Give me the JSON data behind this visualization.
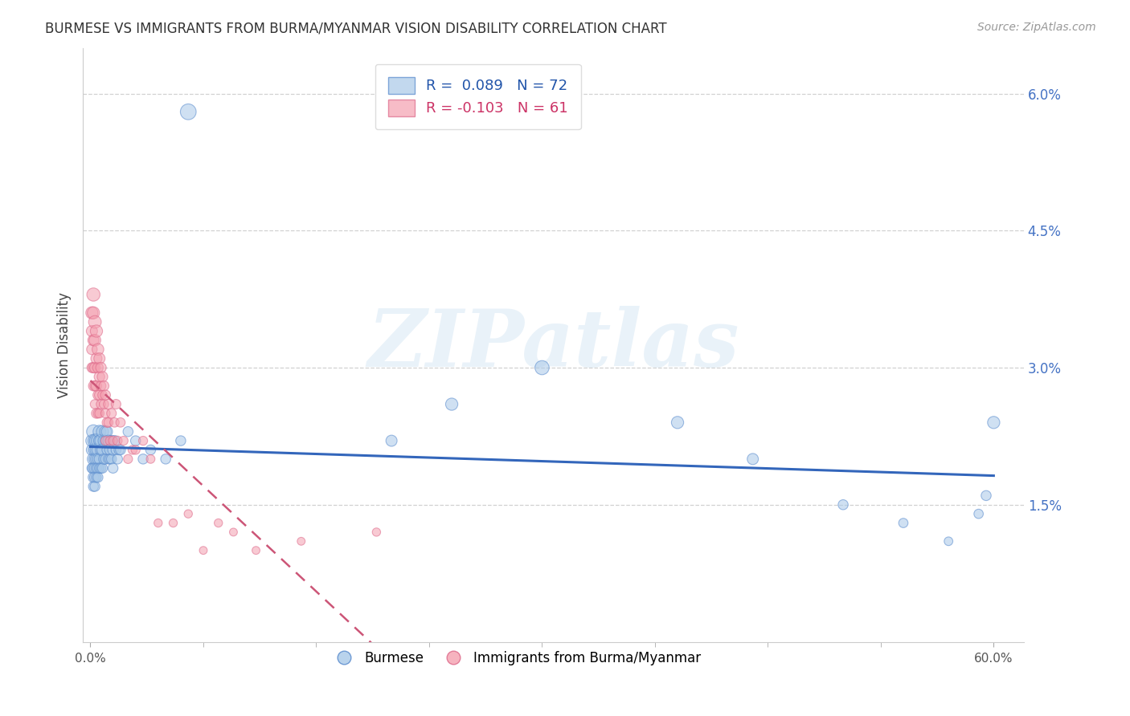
{
  "title": "BURMESE VS IMMIGRANTS FROM BURMA/MYANMAR VISION DISABILITY CORRELATION CHART",
  "source": "Source: ZipAtlas.com",
  "ylabel": "Vision Disability",
  "watermark": "ZIPatlas",
  "xlim": [
    -0.005,
    0.62
  ],
  "ylim": [
    0.0,
    0.065
  ],
  "xticks": [
    0.0,
    0.6
  ],
  "xticklabels": [
    "0.0%",
    "60.0%"
  ],
  "yticks_right": [
    0.015,
    0.03,
    0.045,
    0.06
  ],
  "yticklabels_right": [
    "1.5%",
    "3.0%",
    "4.5%",
    "6.0%"
  ],
  "grid_yticks": [
    0.015,
    0.03,
    0.045,
    0.06
  ],
  "blue_R": 0.089,
  "blue_N": 72,
  "pink_R": -0.103,
  "pink_N": 61,
  "blue_color": "#a8c8e8",
  "pink_color": "#f4a0b0",
  "blue_edge_color": "#5588cc",
  "pink_edge_color": "#dd6688",
  "blue_line_color": "#3366bb",
  "pink_line_color": "#cc5577",
  "legend_label_blue": "Burmese",
  "legend_label_pink": "Immigrants from Burma/Myanmar",
  "blue_scatter_x": [
    0.001,
    0.001,
    0.001,
    0.002,
    0.002,
    0.002,
    0.002,
    0.002,
    0.003,
    0.003,
    0.003,
    0.003,
    0.003,
    0.003,
    0.004,
    0.004,
    0.004,
    0.004,
    0.004,
    0.005,
    0.005,
    0.005,
    0.005,
    0.005,
    0.006,
    0.006,
    0.006,
    0.006,
    0.007,
    0.007,
    0.007,
    0.008,
    0.008,
    0.008,
    0.009,
    0.009,
    0.01,
    0.01,
    0.01,
    0.011,
    0.011,
    0.012,
    0.012,
    0.013,
    0.013,
    0.014,
    0.014,
    0.015,
    0.015,
    0.016,
    0.017,
    0.018,
    0.019,
    0.02,
    0.025,
    0.03,
    0.035,
    0.04,
    0.05,
    0.06,
    0.065,
    0.2,
    0.24,
    0.3,
    0.39,
    0.44,
    0.5,
    0.54,
    0.57,
    0.59,
    0.595,
    0.6
  ],
  "blue_scatter_y": [
    0.022,
    0.021,
    0.019,
    0.023,
    0.02,
    0.019,
    0.018,
    0.017,
    0.022,
    0.021,
    0.02,
    0.019,
    0.018,
    0.017,
    0.022,
    0.021,
    0.02,
    0.019,
    0.018,
    0.022,
    0.021,
    0.02,
    0.019,
    0.018,
    0.023,
    0.022,
    0.02,
    0.019,
    0.022,
    0.021,
    0.019,
    0.023,
    0.021,
    0.019,
    0.022,
    0.02,
    0.023,
    0.022,
    0.02,
    0.023,
    0.021,
    0.022,
    0.02,
    0.021,
    0.02,
    0.022,
    0.02,
    0.021,
    0.019,
    0.022,
    0.021,
    0.02,
    0.021,
    0.021,
    0.023,
    0.022,
    0.02,
    0.021,
    0.02,
    0.022,
    0.058,
    0.022,
    0.026,
    0.03,
    0.024,
    0.02,
    0.015,
    0.013,
    0.011,
    0.014,
    0.016,
    0.024
  ],
  "blue_scatter_sizes": [
    120,
    100,
    80,
    150,
    120,
    100,
    90,
    80,
    150,
    130,
    110,
    100,
    90,
    80,
    150,
    130,
    110,
    90,
    80,
    140,
    120,
    100,
    90,
    80,
    130,
    110,
    90,
    80,
    120,
    100,
    80,
    120,
    100,
    80,
    110,
    90,
    110,
    90,
    80,
    100,
    80,
    100,
    80,
    90,
    80,
    90,
    80,
    90,
    80,
    90,
    80,
    80,
    80,
    80,
    80,
    80,
    80,
    80,
    80,
    80,
    200,
    100,
    120,
    160,
    120,
    100,
    80,
    70,
    60,
    70,
    80,
    120
  ],
  "pink_scatter_x": [
    0.001,
    0.001,
    0.001,
    0.001,
    0.002,
    0.002,
    0.002,
    0.002,
    0.002,
    0.003,
    0.003,
    0.003,
    0.003,
    0.003,
    0.004,
    0.004,
    0.004,
    0.004,
    0.005,
    0.005,
    0.005,
    0.005,
    0.006,
    0.006,
    0.006,
    0.006,
    0.007,
    0.007,
    0.007,
    0.008,
    0.008,
    0.009,
    0.009,
    0.01,
    0.01,
    0.01,
    0.011,
    0.012,
    0.012,
    0.013,
    0.014,
    0.015,
    0.016,
    0.017,
    0.018,
    0.02,
    0.022,
    0.025,
    0.028,
    0.03,
    0.035,
    0.04,
    0.045,
    0.055,
    0.065,
    0.075,
    0.085,
    0.095,
    0.11,
    0.14,
    0.19
  ],
  "pink_scatter_y": [
    0.036,
    0.034,
    0.032,
    0.03,
    0.038,
    0.036,
    0.033,
    0.03,
    0.028,
    0.035,
    0.033,
    0.03,
    0.028,
    0.026,
    0.034,
    0.031,
    0.028,
    0.025,
    0.032,
    0.03,
    0.027,
    0.025,
    0.031,
    0.029,
    0.027,
    0.025,
    0.03,
    0.028,
    0.026,
    0.029,
    0.027,
    0.028,
    0.026,
    0.027,
    0.025,
    0.022,
    0.024,
    0.026,
    0.024,
    0.022,
    0.025,
    0.022,
    0.024,
    0.026,
    0.022,
    0.024,
    0.022,
    0.02,
    0.021,
    0.021,
    0.022,
    0.02,
    0.013,
    0.013,
    0.014,
    0.01,
    0.013,
    0.012,
    0.01,
    0.011,
    0.012
  ],
  "pink_scatter_sizes": [
    120,
    100,
    90,
    80,
    140,
    120,
    100,
    90,
    80,
    130,
    110,
    90,
    80,
    70,
    120,
    100,
    90,
    80,
    110,
    90,
    80,
    70,
    100,
    90,
    80,
    70,
    90,
    80,
    70,
    90,
    70,
    80,
    70,
    80,
    70,
    65,
    75,
    80,
    70,
    70,
    75,
    70,
    70,
    75,
    70,
    70,
    65,
    65,
    65,
    65,
    65,
    60,
    55,
    55,
    55,
    50,
    55,
    50,
    50,
    50,
    55
  ]
}
